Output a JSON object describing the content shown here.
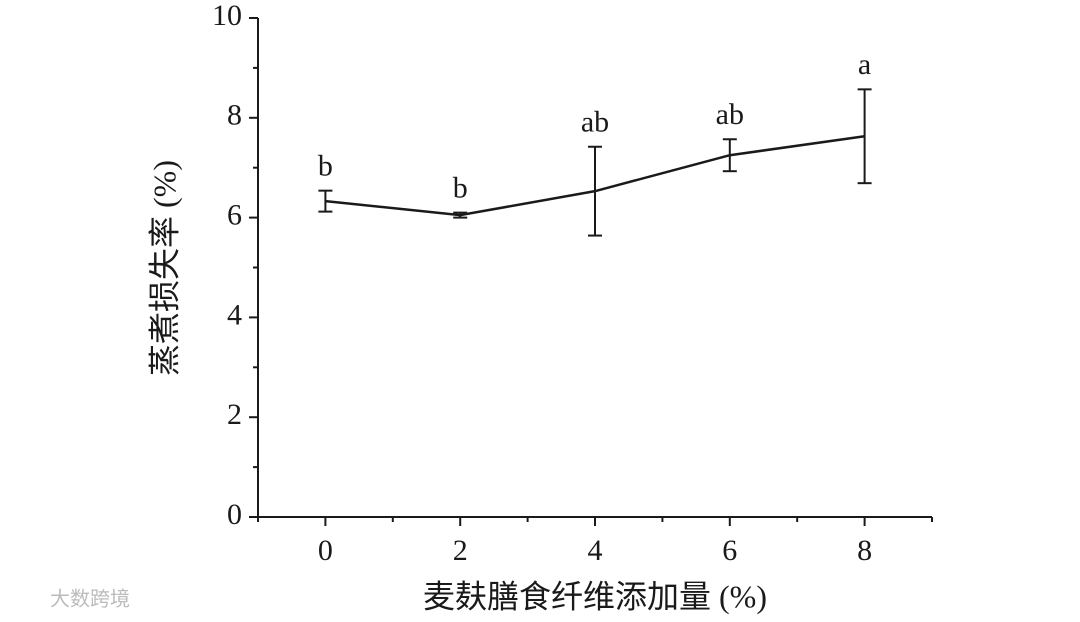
{
  "chart_data": {
    "type": "line",
    "x_label": "麦麸膳食纤维添加量 (%)",
    "y_label": "蒸煮损失率 (%)",
    "x": [
      0,
      2,
      4,
      6,
      8
    ],
    "series": [
      {
        "color": "#1a1a1a",
        "values": [
          6.33,
          6.05,
          6.53,
          7.25,
          7.63
        ],
        "errors": [
          0.21,
          0.05,
          0.89,
          0.32,
          0.94
        ],
        "significance": [
          "b",
          "b",
          "ab",
          "ab",
          "a"
        ]
      }
    ],
    "xlim": [
      -1,
      9
    ],
    "xticks": [
      0,
      2,
      4,
      6,
      8
    ],
    "xminorticks": [
      -1,
      1,
      3,
      5,
      7,
      9
    ],
    "ylim": [
      0,
      10
    ],
    "yticks": [
      0,
      2,
      4,
      6,
      8,
      10
    ],
    "yminorticks": [
      1,
      3,
      5,
      7,
      9
    ],
    "grid": false,
    "watermark": "大数跨境"
  }
}
